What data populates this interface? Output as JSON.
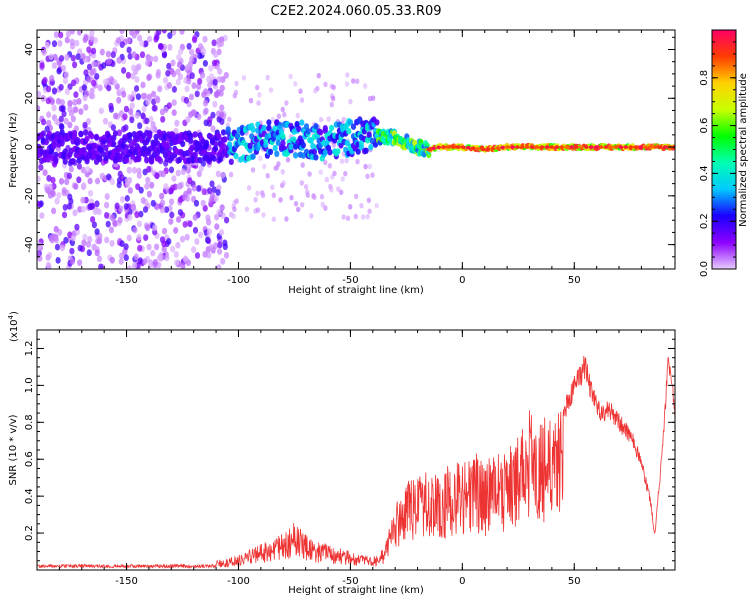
{
  "figure": {
    "title": "C2E2.2024.060.05.33.R09"
  },
  "chart_data": [
    {
      "type": "heatmap",
      "title": "C2E2.2024.060.05.33.R09",
      "xlabel": "Height of straight line (km)",
      "ylabel": "Frequency (Hz)",
      "xlim": [
        -190,
        95
      ],
      "ylim": [
        -50,
        48
      ],
      "xticks": [
        -150,
        -100,
        -50,
        0,
        50
      ],
      "xtick_labels": [
        "-150",
        "-100",
        "-50",
        "0",
        "50"
      ],
      "yticks": [
        -40,
        -20,
        0,
        20,
        40
      ],
      "ytick_labels": [
        "-40",
        "-20",
        "0",
        "20",
        "40"
      ],
      "colorbar": {
        "label": "Normalized spectral amplitude",
        "range": [
          0,
          1
        ],
        "ticks": [
          0.0,
          0.2,
          0.4,
          0.6,
          0.8
        ],
        "tick_labels": [
          "0.0",
          "0.2",
          "0.4",
          "0.6",
          "0.8"
        ],
        "colormap": [
          "#e8ccff",
          "#8c00ff",
          "#1a00ff",
          "#00c8ff",
          "#00ffb4",
          "#00ff00",
          "#c8ff00",
          "#ffd200",
          "#ff3c00",
          "#ff0066"
        ]
      },
      "ridge": {
        "x": [
          -190,
          -150,
          -110,
          -100,
          -90,
          -80,
          -70,
          -60,
          -50,
          -42,
          -38,
          -30,
          -25,
          -20,
          -15,
          -10,
          -5,
          0,
          10,
          20,
          40,
          60,
          80,
          95
        ],
        "y": [
          0,
          0,
          0,
          1,
          3,
          4,
          3,
          2,
          4,
          5,
          4,
          4,
          2,
          0,
          -1,
          0,
          0,
          0,
          -1,
          0,
          0,
          0,
          0,
          0
        ]
      },
      "grid": false
    },
    {
      "type": "line",
      "xlabel": "Height of straight line (km)",
      "ylabel": "SNR (10 * v/v)",
      "y_multiplier": "(x10",
      "y_multiplier_exp": "4",
      "y_multiplier_close": ")",
      "xlim": [
        -190,
        95
      ],
      "ylim": [
        0,
        1.3
      ],
      "xticks": [
        -150,
        -100,
        -50,
        0,
        50
      ],
      "xtick_labels": [
        "-150",
        "-100",
        "-50",
        "0",
        "50"
      ],
      "yticks": [
        0.2,
        0.4,
        0.6,
        0.8,
        1.0,
        1.2
      ],
      "ytick_labels": [
        "0.2",
        "0.4",
        "0.6",
        "0.8",
        "1.0",
        "1.2"
      ],
      "color": "#ee3333",
      "envelope_x": [
        -190,
        -150,
        -120,
        -110,
        -100,
        -90,
        -80,
        -75,
        -65,
        -55,
        -45,
        -40,
        -35,
        -30,
        -25,
        -20,
        -15,
        -10,
        -5,
        0,
        5,
        10,
        15,
        20,
        25,
        30,
        35,
        40,
        45,
        50,
        55,
        58,
        62,
        66,
        70,
        75,
        80,
        84,
        86,
        88,
        90,
        92,
        95
      ],
      "envelope_y": [
        0.025,
        0.025,
        0.03,
        0.05,
        0.08,
        0.14,
        0.2,
        0.26,
        0.16,
        0.12,
        0.08,
        0.07,
        0.12,
        0.35,
        0.5,
        0.5,
        0.55,
        0.5,
        0.6,
        0.58,
        0.65,
        0.6,
        0.62,
        0.7,
        0.72,
        0.88,
        0.8,
        0.95,
        0.9,
        1.05,
        1.18,
        1.0,
        0.9,
        0.92,
        0.85,
        0.78,
        0.62,
        0.4,
        0.2,
        0.5,
        0.8,
        1.2,
        0.9
      ],
      "grid": false,
      "legend": "none"
    }
  ]
}
